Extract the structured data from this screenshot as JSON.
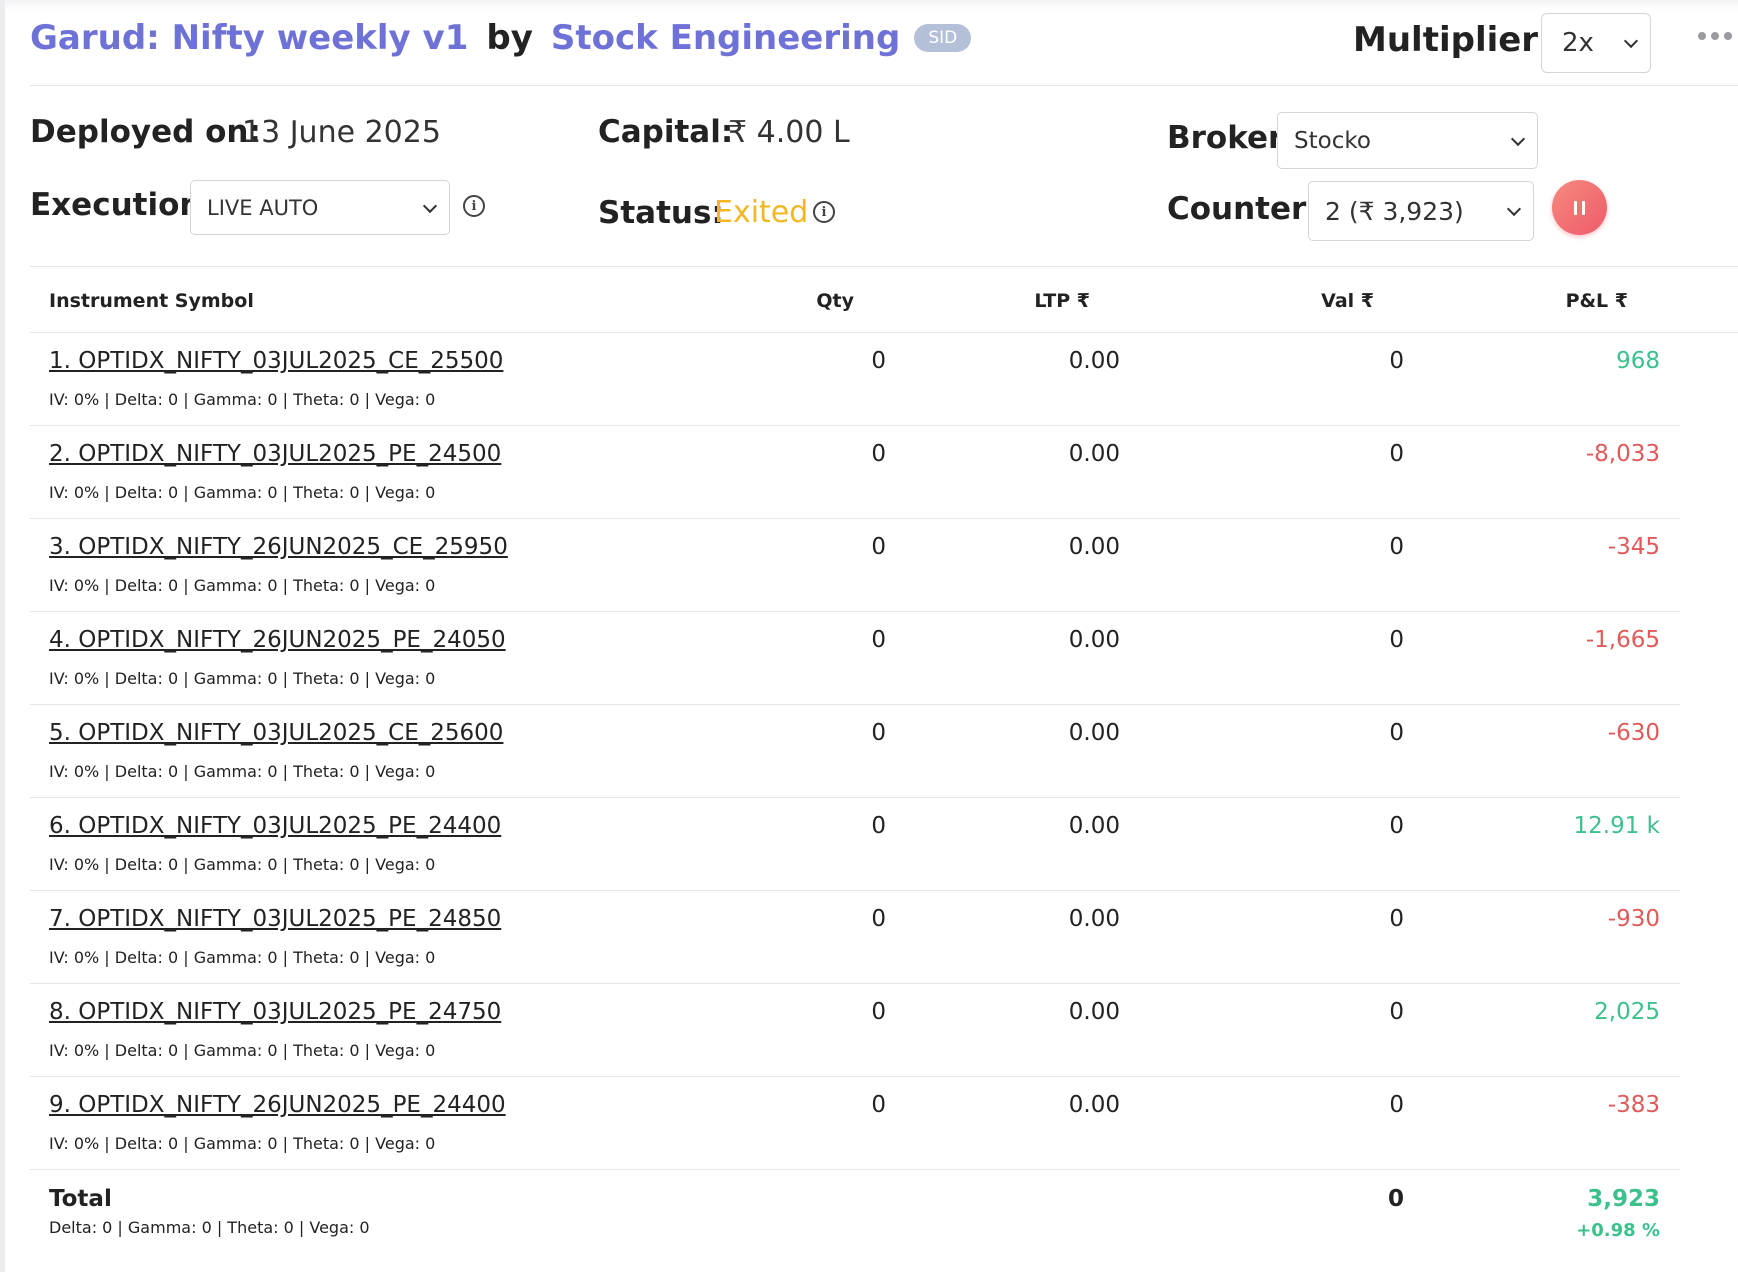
{
  "header": {
    "strategy_name": "Garud: Nifty weekly v1",
    "by_label": "by",
    "author": "Stock Engineering",
    "badge": "SID",
    "multiplier_label": "Multiplier:",
    "multiplier_value": "2x"
  },
  "info": {
    "deployed_label": "Deployed on:",
    "deployed_value": "13 June 2025",
    "capital_label": "Capital:",
    "capital_value": "₹ 4.00 L",
    "broker_label": "Broker:",
    "broker_value": "Stocko",
    "execution_label": "Execution:",
    "execution_value": "LIVE AUTO",
    "status_label": "Status:",
    "status_value": "Exited",
    "counter_label": "Counter:",
    "counter_value": "2 (₹ 3,923)"
  },
  "table": {
    "columns": [
      "Instrument Symbol",
      "Qty",
      "LTP ₹",
      "Val ₹",
      "P&L ₹"
    ],
    "rows": [
      {
        "symbol": "1. OPTIDX_NIFTY_03JUL2025_CE_25500",
        "greeks": "IV: 0% | Delta: 0 | Gamma: 0 | Theta: 0 | Vega: 0",
        "qty": "0",
        "ltp": "0.00",
        "val": "0",
        "pnl": "968",
        "sign": "pos"
      },
      {
        "symbol": "2. OPTIDX_NIFTY_03JUL2025_PE_24500",
        "greeks": "IV: 0% | Delta: 0 | Gamma: 0 | Theta: 0 | Vega: 0",
        "qty": "0",
        "ltp": "0.00",
        "val": "0",
        "pnl": "-8,033",
        "sign": "neg"
      },
      {
        "symbol": "3. OPTIDX_NIFTY_26JUN2025_CE_25950",
        "greeks": "IV: 0% | Delta: 0 | Gamma: 0 | Theta: 0 | Vega: 0",
        "qty": "0",
        "ltp": "0.00",
        "val": "0",
        "pnl": "-345",
        "sign": "neg"
      },
      {
        "symbol": "4. OPTIDX_NIFTY_26JUN2025_PE_24050",
        "greeks": "IV: 0% | Delta: 0 | Gamma: 0 | Theta: 0 | Vega: 0",
        "qty": "0",
        "ltp": "0.00",
        "val": "0",
        "pnl": "-1,665",
        "sign": "neg"
      },
      {
        "symbol": "5. OPTIDX_NIFTY_03JUL2025_CE_25600",
        "greeks": "IV: 0% | Delta: 0 | Gamma: 0 | Theta: 0 | Vega: 0",
        "qty": "0",
        "ltp": "0.00",
        "val": "0",
        "pnl": "-630",
        "sign": "neg"
      },
      {
        "symbol": "6. OPTIDX_NIFTY_03JUL2025_PE_24400",
        "greeks": "IV: 0% | Delta: 0 | Gamma: 0 | Theta: 0 | Vega: 0",
        "qty": "0",
        "ltp": "0.00",
        "val": "0",
        "pnl": "12.91 k",
        "sign": "pos"
      },
      {
        "symbol": "7. OPTIDX_NIFTY_03JUL2025_PE_24850",
        "greeks": "IV: 0% | Delta: 0 | Gamma: 0 | Theta: 0 | Vega: 0",
        "qty": "0",
        "ltp": "0.00",
        "val": "0",
        "pnl": "-930",
        "sign": "neg"
      },
      {
        "symbol": "8. OPTIDX_NIFTY_03JUL2025_PE_24750",
        "greeks": "IV: 0% | Delta: 0 | Gamma: 0 | Theta: 0 | Vega: 0",
        "qty": "0",
        "ltp": "0.00",
        "val": "0",
        "pnl": "2,025",
        "sign": "pos"
      },
      {
        "symbol": "9. OPTIDX_NIFTY_26JUN2025_PE_24400",
        "greeks": "IV: 0% | Delta: 0 | Gamma: 0 | Theta: 0 | Vega: 0",
        "qty": "0",
        "ltp": "0.00",
        "val": "0",
        "pnl": "-383",
        "sign": "neg"
      }
    ],
    "total": {
      "label": "Total",
      "greeks": "Delta: 0 | Gamma: 0  | Theta: 0 | Vega: 0",
      "val": "0",
      "pnl": "3,923",
      "pnl_pct": "+0.98 %"
    }
  },
  "colors": {
    "accent": "#6e72d6",
    "status": "#f2b824",
    "positive": "#3cc18d",
    "negative": "#e05a5a",
    "pause_button": "#ee5a6a"
  },
  "icons": [
    "info-icon",
    "chevron-down-icon",
    "pause-icon",
    "more-horizontal-icon"
  ]
}
